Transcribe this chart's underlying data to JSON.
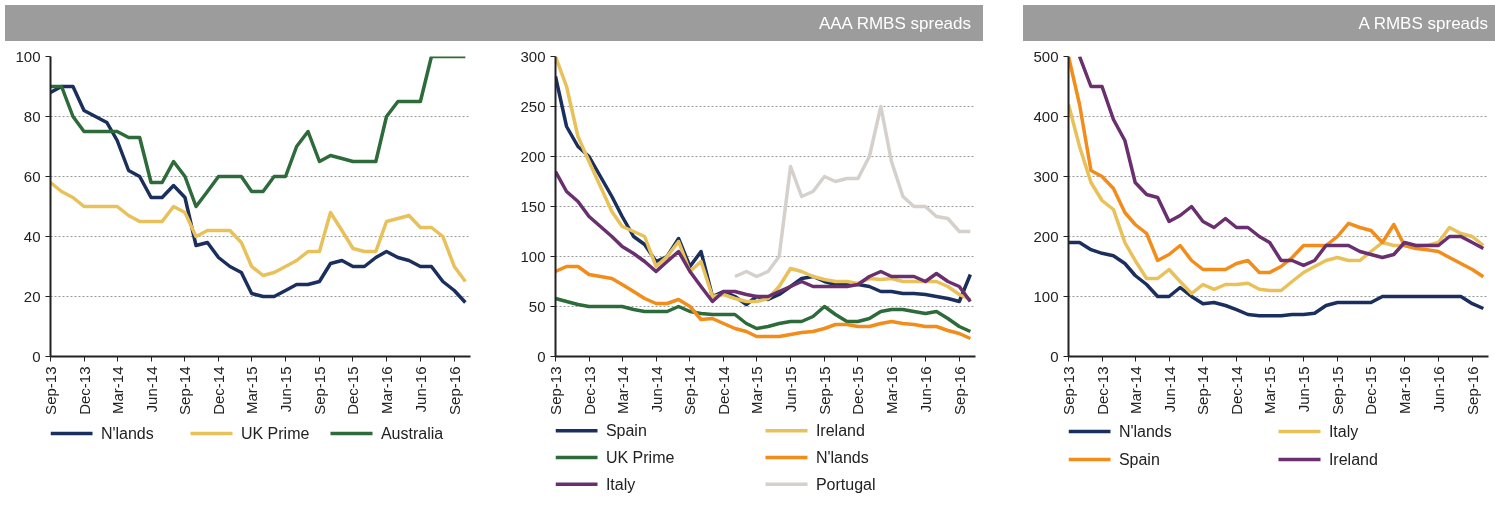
{
  "chart_data": [
    {
      "type": "line",
      "x": [
        "2013-09",
        "2013-10",
        "2013-11",
        "2013-12",
        "2014-01",
        "2014-02",
        "2014-03",
        "2014-04",
        "2014-05",
        "2014-06",
        "2014-07",
        "2014-08",
        "2014-09",
        "2014-10",
        "2014-11",
        "2014-12",
        "2015-01",
        "2015-02",
        "2015-03",
        "2015-04",
        "2015-05",
        "2015-06",
        "2015-07",
        "2015-08",
        "2015-09",
        "2015-10",
        "2015-11",
        "2015-12",
        "2016-01",
        "2016-02",
        "2016-03",
        "2016-04",
        "2016-05",
        "2016-06",
        "2016-07",
        "2016-08",
        "2016-09",
        "2016-10"
      ],
      "series": [
        {
          "name": "N'lands",
          "color": "#1b2f5e",
          "values": [
            88,
            90,
            90,
            82,
            80,
            78,
            72,
            62,
            60,
            53,
            53,
            57,
            53,
            37,
            38,
            33,
            30,
            28,
            21,
            20,
            20,
            22,
            24,
            24,
            25,
            31,
            32,
            30,
            30,
            33,
            35,
            33,
            32,
            30,
            30,
            25,
            22,
            18
          ]
        },
        {
          "name": "UK Prime",
          "color": "#e8c15a",
          "values": [
            58,
            55,
            53,
            50,
            50,
            50,
            50,
            47,
            45,
            45,
            45,
            50,
            48,
            40,
            42,
            42,
            42,
            38,
            30,
            27,
            28,
            30,
            32,
            35,
            35,
            48,
            42,
            36,
            35,
            35,
            45,
            46,
            47,
            43,
            43,
            40,
            30,
            25
          ]
        },
        {
          "name": "Australia",
          "color": "#2e6b3a",
          "values": [
            90,
            90,
            80,
            75,
            75,
            75,
            75,
            73,
            73,
            58,
            58,
            65,
            60,
            50,
            55,
            60,
            60,
            60,
            55,
            55,
            60,
            60,
            70,
            75,
            65,
            67,
            66,
            65,
            65,
            65,
            80,
            85,
            85,
            85,
            100,
            100,
            100,
            100
          ]
        }
      ],
      "xlim": [
        "2013-09",
        "2016-10-15"
      ],
      "xticks": [
        {
          "value": "2013-09",
          "label": "Sep-13"
        },
        {
          "value": "2013-12",
          "label": "Dec-13"
        },
        {
          "value": "2014-03",
          "label": "Mar-14"
        },
        {
          "value": "2014-06",
          "label": "Jun-14"
        },
        {
          "value": "2014-09",
          "label": "Sep-14"
        },
        {
          "value": "2014-12",
          "label": "Dec-14"
        },
        {
          "value": "2015-03",
          "label": "Mar-15"
        },
        {
          "value": "2015-06",
          "label": "Jun-15"
        },
        {
          "value": "2015-09",
          "label": "Sep-15"
        },
        {
          "value": "2015-12",
          "label": "Dec-15"
        },
        {
          "value": "2016-03",
          "label": "Mar-16"
        },
        {
          "value": "2016-06",
          "label": "Jun-16"
        },
        {
          "value": "2016-09",
          "label": "Sep-16"
        }
      ],
      "ylim": [
        0,
        100
      ],
      "yticks": [
        0,
        20,
        40,
        60,
        80,
        100
      ],
      "grid": "y",
      "legend": "bottom",
      "marker": "none",
      "line_style": "solid"
    },
    {
      "type": "line",
      "title": "AAA RMBS spreads",
      "x": [
        "2013-09",
        "2013-10",
        "2013-11",
        "2013-12",
        "2014-01",
        "2014-02",
        "2014-03",
        "2014-04",
        "2014-05",
        "2014-06",
        "2014-07",
        "2014-08",
        "2014-09",
        "2014-10",
        "2014-11",
        "2014-12",
        "2015-01",
        "2015-02",
        "2015-03",
        "2015-04",
        "2015-05",
        "2015-06",
        "2015-07",
        "2015-08",
        "2015-09",
        "2015-10",
        "2015-11",
        "2015-12",
        "2016-01",
        "2016-02",
        "2016-03",
        "2016-04",
        "2016-05",
        "2016-06",
        "2016-07",
        "2016-08",
        "2016-09",
        "2016-10"
      ],
      "series": [
        {
          "name": "Spain",
          "color": "#1b2f5e",
          "values": [
            280,
            230,
            210,
            200,
            180,
            160,
            140,
            120,
            112,
            95,
            100,
            118,
            90,
            105,
            60,
            65,
            60,
            52,
            60,
            57,
            62,
            70,
            78,
            80,
            75,
            72,
            72,
            72,
            70,
            65,
            65,
            63,
            63,
            62,
            60,
            58,
            55,
            82
          ]
        },
        {
          "name": "Ireland",
          "color": "#e8c15a",
          "values": [
            300,
            270,
            220,
            195,
            170,
            145,
            130,
            125,
            120,
            90,
            100,
            115,
            85,
            95,
            60,
            62,
            58,
            55,
            55,
            58,
            70,
            88,
            85,
            80,
            77,
            75,
            75,
            73,
            78,
            77,
            78,
            75,
            75,
            75,
            75,
            70,
            62,
            57
          ]
        },
        {
          "name": "UK Prime",
          "color": "#2e6b3a",
          "values": [
            58,
            55,
            52,
            50,
            50,
            50,
            50,
            47,
            45,
            45,
            45,
            50,
            45,
            43,
            42,
            42,
            42,
            33,
            28,
            30,
            33,
            35,
            35,
            40,
            50,
            42,
            35,
            35,
            38,
            45,
            47,
            47,
            45,
            43,
            45,
            38,
            30,
            25
          ]
        },
        {
          "name": "N'lands",
          "color": "#f28c1b",
          "values": [
            85,
            90,
            90,
            82,
            80,
            78,
            72,
            65,
            58,
            53,
            53,
            57,
            50,
            37,
            38,
            33,
            28,
            25,
            20,
            20,
            20,
            22,
            24,
            25,
            28,
            32,
            32,
            30,
            30,
            33,
            35,
            33,
            32,
            30,
            30,
            26,
            23,
            18
          ]
        },
        {
          "name": "Italy",
          "color": "#6a2f6e",
          "values": [
            185,
            165,
            155,
            140,
            130,
            120,
            110,
            103,
            95,
            85,
            95,
            105,
            85,
            70,
            55,
            65,
            65,
            62,
            60,
            60,
            65,
            70,
            75,
            70,
            70,
            70,
            70,
            72,
            80,
            85,
            80,
            80,
            80,
            75,
            83,
            75,
            70,
            55
          ]
        },
        {
          "name": "Portugal",
          "color": "#d5d0cc",
          "values": [
            null,
            null,
            null,
            null,
            null,
            null,
            null,
            null,
            null,
            null,
            null,
            null,
            null,
            null,
            null,
            null,
            80,
            85,
            80,
            85,
            100,
            190,
            160,
            165,
            180,
            175,
            178,
            178,
            200,
            250,
            195,
            160,
            150,
            150,
            140,
            138,
            125,
            125
          ]
        }
      ],
      "xlim": [
        "2013-09",
        "2016-10-15"
      ],
      "xticks": [
        {
          "value": "2013-09",
          "label": "Sep-13"
        },
        {
          "value": "2013-12",
          "label": "Dec-13"
        },
        {
          "value": "2014-03",
          "label": "Mar-14"
        },
        {
          "value": "2014-06",
          "label": "Jun-14"
        },
        {
          "value": "2014-09",
          "label": "Sep-14"
        },
        {
          "value": "2014-12",
          "label": "Dec-14"
        },
        {
          "value": "2015-03",
          "label": "Mar-15"
        },
        {
          "value": "2015-06",
          "label": "Jun-15"
        },
        {
          "value": "2015-09",
          "label": "Sep-15"
        },
        {
          "value": "2015-12",
          "label": "Dec-15"
        },
        {
          "value": "2016-03",
          "label": "Mar-16"
        },
        {
          "value": "2016-06",
          "label": "Jun-16"
        },
        {
          "value": "2016-09",
          "label": "Sep-16"
        }
      ],
      "ylim": [
        0,
        300
      ],
      "yticks": [
        0,
        50,
        100,
        150,
        200,
        250,
        300
      ],
      "grid": "y",
      "legend": "bottom",
      "marker": "none",
      "line_style": "solid"
    },
    {
      "type": "line",
      "title": "A RMBS spreads",
      "x": [
        "2013-09",
        "2013-10",
        "2013-11",
        "2013-12",
        "2014-01",
        "2014-02",
        "2014-03",
        "2014-04",
        "2014-05",
        "2014-06",
        "2014-07",
        "2014-08",
        "2014-09",
        "2014-10",
        "2014-11",
        "2014-12",
        "2015-01",
        "2015-02",
        "2015-03",
        "2015-04",
        "2015-05",
        "2015-06",
        "2015-07",
        "2015-08",
        "2015-09",
        "2015-10",
        "2015-11",
        "2015-12",
        "2016-01",
        "2016-02",
        "2016-03",
        "2016-04",
        "2016-05",
        "2016-06",
        "2016-07",
        "2016-08",
        "2016-09",
        "2016-10"
      ],
      "series": [
        {
          "name": "N'lands",
          "color": "#1b2f5e",
          "values": [
            190,
            190,
            178,
            172,
            168,
            155,
            135,
            120,
            100,
            100,
            115,
            100,
            88,
            90,
            85,
            78,
            70,
            68,
            68,
            68,
            70,
            70,
            72,
            85,
            90,
            90,
            90,
            90,
            100,
            100,
            100,
            100,
            100,
            100,
            100,
            100,
            88,
            80
          ]
        },
        {
          "name": "Italy",
          "color": "#e8c15a",
          "values": [
            420,
            350,
            290,
            260,
            245,
            190,
            160,
            130,
            130,
            145,
            125,
            105,
            120,
            112,
            120,
            120,
            122,
            112,
            110,
            110,
            125,
            140,
            150,
            160,
            165,
            160,
            160,
            175,
            190,
            185,
            185,
            185,
            185,
            190,
            215,
            205,
            200,
            185
          ]
        },
        {
          "name": "Spain",
          "color": "#f28c1b",
          "values": [
            500,
            420,
            310,
            300,
            280,
            240,
            220,
            205,
            160,
            170,
            185,
            160,
            145,
            145,
            145,
            155,
            160,
            140,
            140,
            150,
            165,
            185,
            185,
            185,
            200,
            222,
            215,
            210,
            190,
            220,
            185,
            180,
            178,
            175,
            165,
            155,
            145,
            133
          ]
        },
        {
          "name": "Ireland",
          "color": "#6a2f6e",
          "values": [
            null,
            500,
            450,
            450,
            395,
            360,
            290,
            270,
            265,
            225,
            235,
            250,
            225,
            215,
            230,
            215,
            215,
            200,
            190,
            160,
            160,
            152,
            160,
            185,
            185,
            185,
            175,
            170,
            165,
            170,
            190,
            185,
            185,
            185,
            200,
            200,
            190,
            180
          ]
        }
      ],
      "xlim": [
        "2013-09",
        "2016-10-15"
      ],
      "xticks": [
        {
          "value": "2013-09",
          "label": "Sep-13"
        },
        {
          "value": "2013-12",
          "label": "Dec-13"
        },
        {
          "value": "2014-03",
          "label": "Mar-14"
        },
        {
          "value": "2014-06",
          "label": "Jun-14"
        },
        {
          "value": "2014-09",
          "label": "Sep-14"
        },
        {
          "value": "2014-12",
          "label": "Dec-14"
        },
        {
          "value": "2015-03",
          "label": "Mar-15"
        },
        {
          "value": "2015-06",
          "label": "Jun-15"
        },
        {
          "value": "2015-09",
          "label": "Sep-15"
        },
        {
          "value": "2015-12",
          "label": "Dec-15"
        },
        {
          "value": "2016-03",
          "label": "Mar-16"
        },
        {
          "value": "2016-06",
          "label": "Jun-16"
        },
        {
          "value": "2016-09",
          "label": "Sep-16"
        }
      ],
      "ylim": [
        0,
        500
      ],
      "yticks": [
        0,
        100,
        200,
        300,
        400,
        500
      ],
      "grid": "y",
      "legend": "bottom",
      "marker": "none",
      "line_style": "solid"
    }
  ]
}
